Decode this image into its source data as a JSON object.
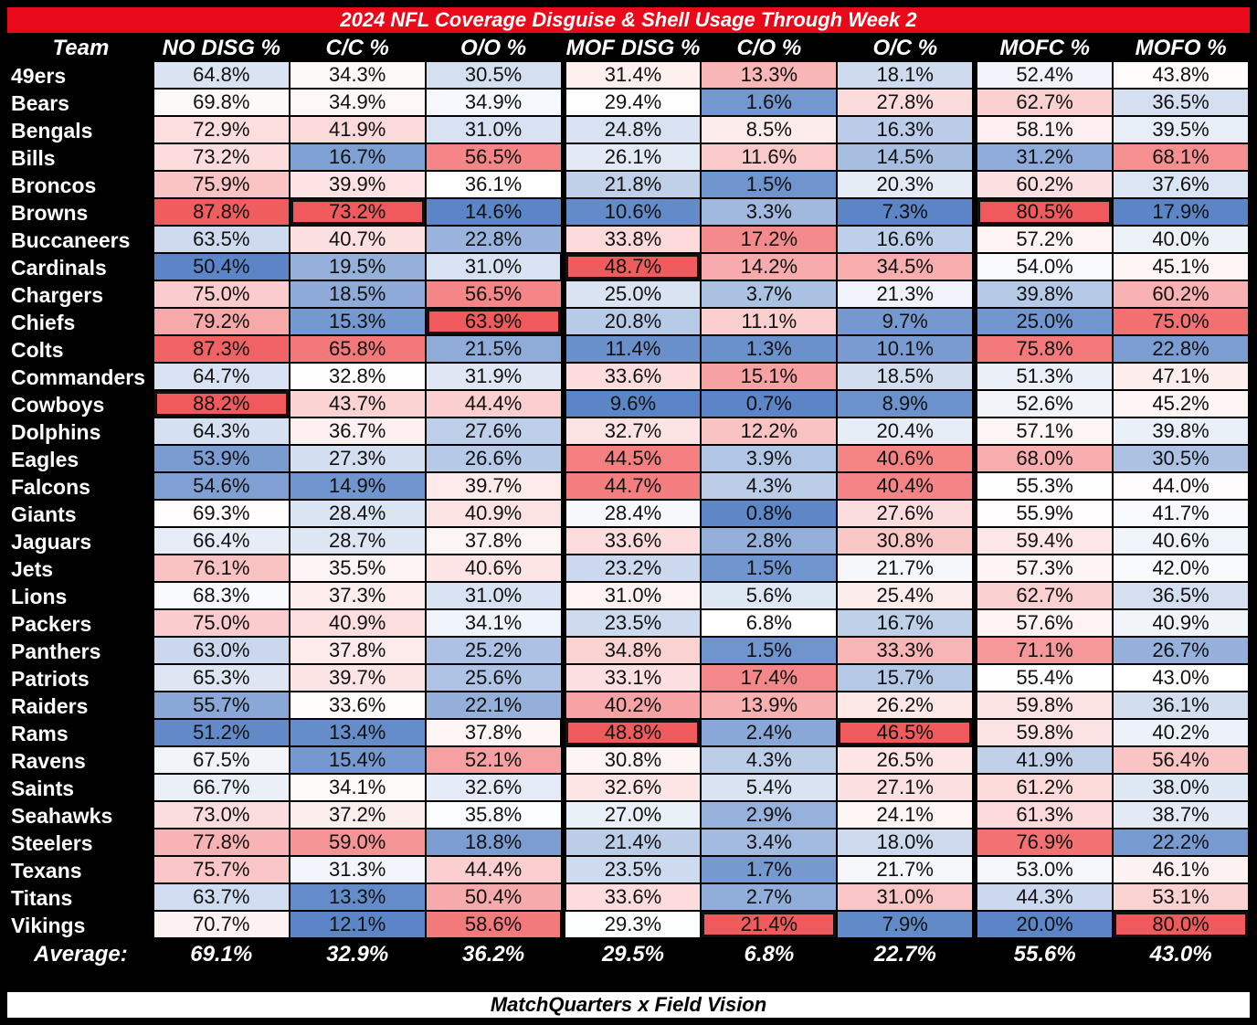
{
  "title": "2024 NFL Coverage Disguise & Shell Usage Through Week 2",
  "footer": "MatchQuarters x Field Vision",
  "colors": {
    "header_bg": "#e8091b",
    "low": "#5b85c7",
    "mid": "#ffffff",
    "high": "#f05a5c",
    "outline": "#111111"
  },
  "chart_data": {
    "type": "heatmap",
    "title": "2024 NFL Coverage Disguise & Shell Usage Through Week 2",
    "row_header": "Team",
    "columns": [
      "NO DISG %",
      "C/C %",
      "O/O %",
      "MOF DISG %",
      "C/O %",
      "O/C %",
      "MOFC %",
      "MOFO %"
    ],
    "teams": [
      "49ers",
      "Bears",
      "Bengals",
      "Bills",
      "Broncos",
      "Browns",
      "Buccaneers",
      "Cardinals",
      "Chargers",
      "Chiefs",
      "Colts",
      "Commanders",
      "Cowboys",
      "Dolphins",
      "Eagles",
      "Falcons",
      "Giants",
      "Jaguars",
      "Jets",
      "Lions",
      "Packers",
      "Panthers",
      "Patriots",
      "Raiders",
      "Rams",
      "Ravens",
      "Saints",
      "Seahawks",
      "Steelers",
      "Texans",
      "Titans",
      "Vikings"
    ],
    "values": [
      [
        64.8,
        34.3,
        30.5,
        31.4,
        13.3,
        18.1,
        52.4,
        43.8
      ],
      [
        69.8,
        34.9,
        34.9,
        29.4,
        1.6,
        27.8,
        62.7,
        36.5
      ],
      [
        72.9,
        41.9,
        31.0,
        24.8,
        8.5,
        16.3,
        58.1,
        39.5
      ],
      [
        73.2,
        16.7,
        56.5,
        26.1,
        11.6,
        14.5,
        31.2,
        68.1
      ],
      [
        75.9,
        39.9,
        36.1,
        21.8,
        1.5,
        20.3,
        60.2,
        37.6
      ],
      [
        87.8,
        73.2,
        14.6,
        10.6,
        3.3,
        7.3,
        80.5,
        17.9
      ],
      [
        63.5,
        40.7,
        22.8,
        33.8,
        17.2,
        16.6,
        57.2,
        40.0
      ],
      [
        50.4,
        19.5,
        31.0,
        48.7,
        14.2,
        34.5,
        54.0,
        45.1
      ],
      [
        75.0,
        18.5,
        56.5,
        25.0,
        3.7,
        21.3,
        39.8,
        60.2
      ],
      [
        79.2,
        15.3,
        63.9,
        20.8,
        11.1,
        9.7,
        25.0,
        75.0
      ],
      [
        87.3,
        65.8,
        21.5,
        11.4,
        1.3,
        10.1,
        75.8,
        22.8
      ],
      [
        64.7,
        32.8,
        31.9,
        33.6,
        15.1,
        18.5,
        51.3,
        47.1
      ],
      [
        88.2,
        43.7,
        44.4,
        9.6,
        0.7,
        8.9,
        52.6,
        45.2
      ],
      [
        64.3,
        36.7,
        27.6,
        32.7,
        12.2,
        20.4,
        57.1,
        39.8
      ],
      [
        53.9,
        27.3,
        26.6,
        44.5,
        3.9,
        40.6,
        68.0,
        30.5
      ],
      [
        54.6,
        14.9,
        39.7,
        44.7,
        4.3,
        40.4,
        55.3,
        44.0
      ],
      [
        69.3,
        28.4,
        40.9,
        28.4,
        0.8,
        27.6,
        55.9,
        41.7
      ],
      [
        66.4,
        28.7,
        37.8,
        33.6,
        2.8,
        30.8,
        59.4,
        40.6
      ],
      [
        76.1,
        35.5,
        40.6,
        23.2,
        1.5,
        21.7,
        57.3,
        42.0
      ],
      [
        68.3,
        37.3,
        31.0,
        31.0,
        5.6,
        25.4,
        62.7,
        36.5
      ],
      [
        75.0,
        40.9,
        34.1,
        23.5,
        6.8,
        16.7,
        57.6,
        40.9
      ],
      [
        63.0,
        37.8,
        25.2,
        34.8,
        1.5,
        33.3,
        71.1,
        26.7
      ],
      [
        65.3,
        39.7,
        25.6,
        33.1,
        17.4,
        15.7,
        55.4,
        43.0
      ],
      [
        55.7,
        33.6,
        22.1,
        40.2,
        13.9,
        26.2,
        59.8,
        36.1
      ],
      [
        51.2,
        13.4,
        37.8,
        48.8,
        2.4,
        46.5,
        59.8,
        40.2
      ],
      [
        67.5,
        15.4,
        52.1,
        30.8,
        4.3,
        26.5,
        41.9,
        56.4
      ],
      [
        66.7,
        34.1,
        32.6,
        32.6,
        5.4,
        27.1,
        61.2,
        38.0
      ],
      [
        73.0,
        37.2,
        35.8,
        27.0,
        2.9,
        24.1,
        61.3,
        38.7
      ],
      [
        77.8,
        59.0,
        18.8,
        21.4,
        3.4,
        18.0,
        76.9,
        22.2
      ],
      [
        75.7,
        31.3,
        44.4,
        23.5,
        1.7,
        21.7,
        53.0,
        46.1
      ],
      [
        63.7,
        13.3,
        50.4,
        33.6,
        2.7,
        31.0,
        44.3,
        53.1
      ],
      [
        70.7,
        12.1,
        58.6,
        29.3,
        21.4,
        7.9,
        20.0,
        80.0
      ]
    ],
    "highlighted": [
      [
        5,
        1
      ],
      [
        5,
        6
      ],
      [
        7,
        3
      ],
      [
        9,
        2
      ],
      [
        12,
        0
      ],
      [
        24,
        3
      ],
      [
        24,
        5
      ],
      [
        31,
        4
      ],
      [
        31,
        7
      ]
    ],
    "average_label": "Average:",
    "averages": [
      69.1,
      32.9,
      36.2,
      29.5,
      6.8,
      22.7,
      55.6,
      43.0
    ],
    "unit": "%"
  }
}
